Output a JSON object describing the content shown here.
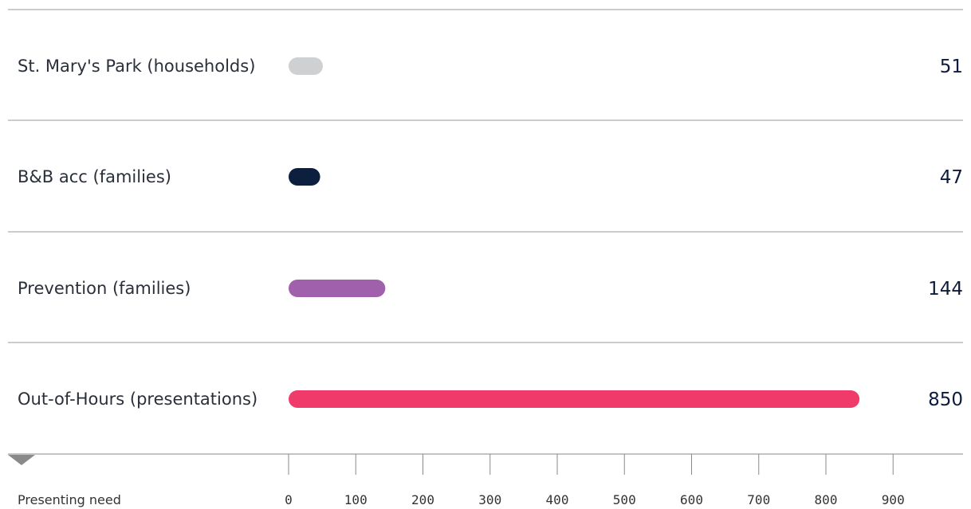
{
  "chart_data": {
    "type": "bar",
    "orientation": "horizontal",
    "categories": [
      "St. Mary's Park (households)",
      "B&B acc (families)",
      "Prevention (families)",
      "Out-of-Hours (presentations)"
    ],
    "values": [
      51,
      47,
      144,
      850
    ],
    "value_labels": [
      "51",
      "47",
      "144",
      "850"
    ],
    "colors": [
      "#cfd0d2",
      "#0d1f3f",
      "#a160ab",
      "#ef3a6a"
    ],
    "xlabel": "Presenting need",
    "xlim": [
      0,
      900
    ],
    "xticks": [
      0,
      100,
      200,
      300,
      400,
      500,
      600,
      700,
      800,
      900
    ],
    "grid": false
  }
}
